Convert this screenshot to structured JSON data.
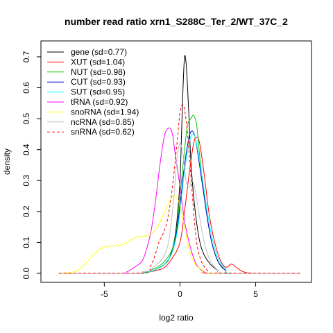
{
  "chart_data": {
    "type": "line",
    "title": "number read ratio xrn1_S288C_Ter_2/WT_37C_2",
    "xlabel": "log2 ratio",
    "ylabel": "density",
    "xlim": [
      -8.5,
      8
    ],
    "ylim": [
      0,
      0.72
    ],
    "x_ticks": [
      -5,
      0,
      5
    ],
    "y_ticks": [
      0.0,
      0.1,
      0.2,
      0.3,
      0.4,
      0.5,
      0.6,
      0.7
    ],
    "x_tick_labels": [
      "-5",
      "0",
      "5"
    ],
    "y_tick_labels": [
      "0.0",
      "0.1",
      "0.2",
      "0.3",
      "0.4",
      "0.5",
      "0.6",
      "0.7"
    ],
    "legend_position": "top-left",
    "series": [
      {
        "name": "gene (sd=0.77)",
        "color": "#000000",
        "dash": "solid",
        "points": [
          [
            -8,
            0
          ],
          [
            -3,
            0
          ],
          [
            -2,
            0.005
          ],
          [
            -1.5,
            0.015
          ],
          [
            -1,
            0.03
          ],
          [
            -0.7,
            0.05
          ],
          [
            -0.4,
            0.1
          ],
          [
            -0.2,
            0.17
          ],
          [
            0,
            0.3
          ],
          [
            0.1,
            0.45
          ],
          [
            0.2,
            0.6
          ],
          [
            0.3,
            0.7
          ],
          [
            0.4,
            0.68
          ],
          [
            0.5,
            0.6
          ],
          [
            0.6,
            0.5
          ],
          [
            0.7,
            0.38
          ],
          [
            0.9,
            0.25
          ],
          [
            1.2,
            0.13
          ],
          [
            1.5,
            0.07
          ],
          [
            2,
            0.03
          ],
          [
            2.5,
            0.01
          ],
          [
            3,
            0
          ],
          [
            8,
            0
          ]
        ]
      },
      {
        "name": "XUT (sd=1.04)",
        "color": "#ff0000",
        "dash": "solid",
        "points": [
          [
            -8,
            0
          ],
          [
            -3,
            0
          ],
          [
            -2,
            0.005
          ],
          [
            -1.5,
            0.01
          ],
          [
            -1,
            0.02
          ],
          [
            -0.5,
            0.05
          ],
          [
            0,
            0.1
          ],
          [
            0.3,
            0.2
          ],
          [
            0.6,
            0.32
          ],
          [
            0.9,
            0.42
          ],
          [
            1.1,
            0.44
          ],
          [
            1.3,
            0.42
          ],
          [
            1.6,
            0.32
          ],
          [
            1.9,
            0.2
          ],
          [
            2.2,
            0.12
          ],
          [
            2.6,
            0.05
          ],
          [
            3.0,
            0.02
          ],
          [
            3.4,
            0.03
          ],
          [
            3.7,
            0.02
          ],
          [
            4.2,
            0.005
          ],
          [
            5,
            0
          ],
          [
            8,
            0
          ]
        ]
      },
      {
        "name": "NUT (sd=0.98)",
        "color": "#00cc00",
        "dash": "solid",
        "points": [
          [
            -8,
            0
          ],
          [
            -3,
            0
          ],
          [
            -2,
            0.01
          ],
          [
            -1.5,
            0.02
          ],
          [
            -1,
            0.04
          ],
          [
            -0.5,
            0.08
          ],
          [
            -0.2,
            0.15
          ],
          [
            0,
            0.25
          ],
          [
            0.3,
            0.4
          ],
          [
            0.5,
            0.48
          ],
          [
            0.7,
            0.5
          ],
          [
            0.9,
            0.51
          ],
          [
            1.1,
            0.48
          ],
          [
            1.3,
            0.38
          ],
          [
            1.6,
            0.25
          ],
          [
            1.9,
            0.15
          ],
          [
            2.2,
            0.08
          ],
          [
            2.6,
            0.03
          ],
          [
            3,
            0.01
          ],
          [
            3.5,
            0
          ],
          [
            8,
            0
          ]
        ]
      },
      {
        "name": "CUT (sd=0.93)",
        "color": "#0000cc",
        "dash": "solid",
        "points": [
          [
            -8,
            0
          ],
          [
            -3,
            0
          ],
          [
            -2,
            0.005
          ],
          [
            -1.5,
            0.015
          ],
          [
            -1,
            0.03
          ],
          [
            -0.5,
            0.07
          ],
          [
            -0.2,
            0.14
          ],
          [
            0,
            0.22
          ],
          [
            0.3,
            0.35
          ],
          [
            0.6,
            0.44
          ],
          [
            0.8,
            0.46
          ],
          [
            1.0,
            0.44
          ],
          [
            1.2,
            0.38
          ],
          [
            1.5,
            0.28
          ],
          [
            1.8,
            0.18
          ],
          [
            2.1,
            0.1
          ],
          [
            2.5,
            0.04
          ],
          [
            3,
            0.01
          ],
          [
            3.5,
            0
          ],
          [
            8,
            0
          ]
        ]
      },
      {
        "name": "SUT (sd=0.95)",
        "color": "#00ffff",
        "dash": "solid",
        "points": [
          [
            -8,
            0
          ],
          [
            -3,
            0
          ],
          [
            -2,
            0.005
          ],
          [
            -1.5,
            0.015
          ],
          [
            -1,
            0.03
          ],
          [
            -0.5,
            0.07
          ],
          [
            -0.2,
            0.13
          ],
          [
            0,
            0.2
          ],
          [
            0.3,
            0.33
          ],
          [
            0.6,
            0.42
          ],
          [
            0.8,
            0.45
          ],
          [
            1.0,
            0.44
          ],
          [
            1.2,
            0.39
          ],
          [
            1.5,
            0.3
          ],
          [
            1.8,
            0.2
          ],
          [
            2.1,
            0.12
          ],
          [
            2.5,
            0.05
          ],
          [
            3,
            0.015
          ],
          [
            3.5,
            0
          ],
          [
            8,
            0
          ]
        ]
      },
      {
        "name": "tRNA (sd=0.92)",
        "color": "#ff00ff",
        "dash": "solid",
        "points": [
          [
            -8,
            0
          ],
          [
            -4,
            0
          ],
          [
            -3.5,
            0.005
          ],
          [
            -3,
            0.02
          ],
          [
            -2.5,
            0.04
          ],
          [
            -2.2,
            0.08
          ],
          [
            -1.9,
            0.14
          ],
          [
            -1.6,
            0.24
          ],
          [
            -1.3,
            0.36
          ],
          [
            -1.0,
            0.45
          ],
          [
            -0.7,
            0.47
          ],
          [
            -0.5,
            0.45
          ],
          [
            -0.3,
            0.38
          ],
          [
            0,
            0.28
          ],
          [
            0.3,
            0.17
          ],
          [
            0.6,
            0.1
          ],
          [
            0.9,
            0.05
          ],
          [
            1.2,
            0.02
          ],
          [
            1.6,
            0.005
          ],
          [
            2,
            0
          ],
          [
            8,
            0
          ]
        ]
      },
      {
        "name": "snoRNA (sd=1.94)",
        "color": "#ffff00",
        "dash": "solid",
        "points": [
          [
            -8,
            0
          ],
          [
            -7,
            0.005
          ],
          [
            -6.5,
            0.02
          ],
          [
            -6,
            0.045
          ],
          [
            -5.5,
            0.07
          ],
          [
            -5,
            0.085
          ],
          [
            -4.5,
            0.088
          ],
          [
            -4,
            0.09
          ],
          [
            -3.5,
            0.1
          ],
          [
            -3,
            0.115
          ],
          [
            -2.5,
            0.12
          ],
          [
            -2,
            0.125
          ],
          [
            -1.5,
            0.15
          ],
          [
            -1,
            0.2
          ],
          [
            -0.6,
            0.24
          ],
          [
            -0.3,
            0.25
          ],
          [
            0,
            0.22
          ],
          [
            0.3,
            0.15
          ],
          [
            0.6,
            0.08
          ],
          [
            1,
            0.03
          ],
          [
            1.5,
            0.01
          ],
          [
            2,
            0
          ],
          [
            8,
            0
          ]
        ]
      },
      {
        "name": "ncRNA (sd=0.85)",
        "color": "#c0c0c0",
        "dash": "solid",
        "points": [
          [
            -8,
            0
          ],
          [
            -3,
            0
          ],
          [
            -2.5,
            0.005
          ],
          [
            -2,
            0.01
          ],
          [
            -1.5,
            0.03
          ],
          [
            -1,
            0.06
          ],
          [
            -0.7,
            0.12
          ],
          [
            -0.4,
            0.25
          ],
          [
            -0.2,
            0.37
          ],
          [
            0,
            0.42
          ],
          [
            0.2,
            0.38
          ],
          [
            0.4,
            0.3
          ],
          [
            0.6,
            0.28
          ],
          [
            0.8,
            0.3
          ],
          [
            1.0,
            0.27
          ],
          [
            1.3,
            0.18
          ],
          [
            1.6,
            0.1
          ],
          [
            2,
            0.04
          ],
          [
            2.5,
            0.01
          ],
          [
            3,
            0
          ],
          [
            8,
            0
          ]
        ]
      },
      {
        "name": "snRNA (sd=0.62)",
        "color": "#ff0000",
        "dash": "dashed",
        "points": [
          [
            -8,
            0
          ],
          [
            -2.5,
            0
          ],
          [
            -2,
            0.02
          ],
          [
            -1.7,
            0.05
          ],
          [
            -1.4,
            0.1
          ],
          [
            -1.1,
            0.13
          ],
          [
            -0.8,
            0.18
          ],
          [
            -0.5,
            0.28
          ],
          [
            -0.2,
            0.42
          ],
          [
            0,
            0.52
          ],
          [
            0.15,
            0.545
          ],
          [
            0.3,
            0.53
          ],
          [
            0.5,
            0.45
          ],
          [
            0.7,
            0.33
          ],
          [
            0.9,
            0.2
          ],
          [
            1.1,
            0.1
          ],
          [
            1.4,
            0.04
          ],
          [
            1.8,
            0.01
          ],
          [
            2.2,
            0
          ],
          [
            8,
            0
          ]
        ]
      }
    ]
  }
}
